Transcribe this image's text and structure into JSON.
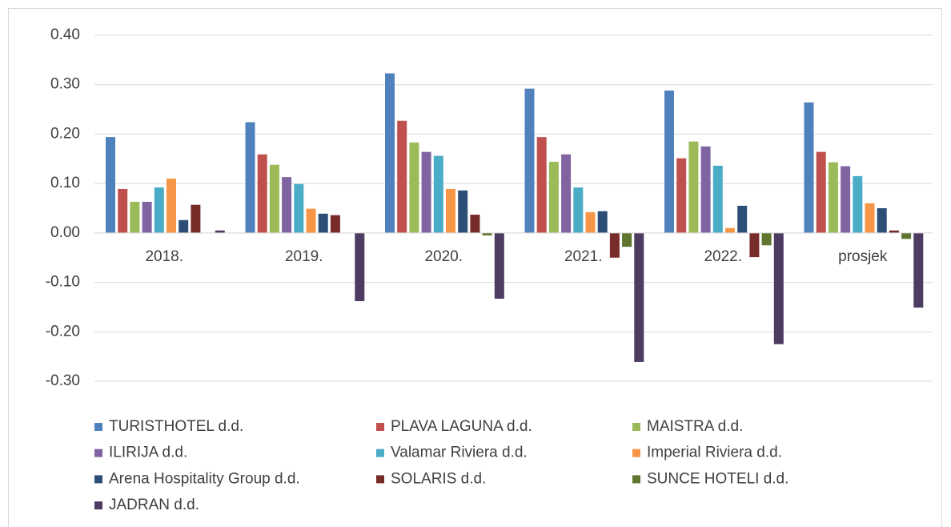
{
  "chart_data": {
    "type": "bar",
    "categories": [
      "2018.",
      "2019.",
      "2020.",
      "2021.",
      "2022.",
      "prosjek"
    ],
    "series": [
      {
        "name": "TURISTHOTEL d.d.",
        "color": "#4f81bd",
        "values": [
          0.194,
          0.224,
          0.323,
          0.292,
          0.288,
          0.264
        ]
      },
      {
        "name": "PLAVA LAGUNA d.d.",
        "color": "#c0504d",
        "values": [
          0.089,
          0.159,
          0.227,
          0.194,
          0.151,
          0.164
        ]
      },
      {
        "name": "MAISTRA d.d.",
        "color": "#9bbb59",
        "values": [
          0.063,
          0.138,
          0.183,
          0.144,
          0.185,
          0.143
        ]
      },
      {
        "name": "ILIRIJA d.d.",
        "color": "#8064a2",
        "values": [
          0.063,
          0.113,
          0.164,
          0.159,
          0.175,
          0.135
        ]
      },
      {
        "name": "Valamar Riviera d.d.",
        "color": "#4bacc6",
        "values": [
          0.092,
          0.099,
          0.156,
          0.092,
          0.136,
          0.115
        ]
      },
      {
        "name": "Imperial Riviera d.d.",
        "color": "#f79646",
        "values": [
          0.11,
          0.049,
          0.089,
          0.042,
          0.01,
          0.06
        ]
      },
      {
        "name": "Arena Hospitality Group d.d.",
        "color": "#2c4d75",
        "values": [
          0.026,
          0.039,
          0.086,
          0.044,
          0.055,
          0.05
        ]
      },
      {
        "name": "SOLARIS d.d.",
        "color": "#772c2a",
        "values": [
          0.057,
          0.036,
          0.037,
          -0.05,
          -0.049,
          0.005
        ]
      },
      {
        "name": "SUNCE HOTELI d.d.",
        "color": "#5f7530",
        "values": [
          0,
          0,
          -0.005,
          -0.028,
          -0.025,
          -0.012
        ]
      },
      {
        "name": "JADRAN d.d.",
        "color": "#4d3b62",
        "values": [
          0.005,
          -0.138,
          -0.133,
          -0.261,
          -0.225,
          -0.151
        ]
      }
    ],
    "ylim": [
      -0.3,
      0.4
    ],
    "yticks": [
      {
        "value": -0.3,
        "label": "-0.30"
      },
      {
        "value": -0.2,
        "label": "-0.20"
      },
      {
        "value": -0.1,
        "label": "-0.10"
      },
      {
        "value": 0,
        "label": "0.00"
      },
      {
        "value": 0.1,
        "label": "0.10"
      },
      {
        "value": 0.2,
        "label": "0.20"
      },
      {
        "value": 0.3,
        "label": "0.30"
      },
      {
        "value": 0.4,
        "label": "0.40"
      }
    ],
    "grid": true,
    "legend": "bottom"
  }
}
